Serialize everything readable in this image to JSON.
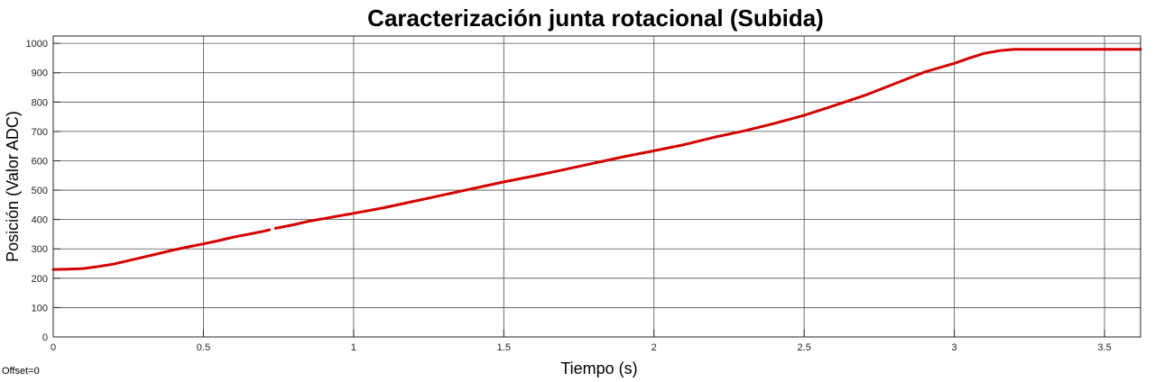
{
  "chart_data": {
    "type": "line",
    "title": "Caracterización junta rotacional (Subida)",
    "xlabel": "Tiempo (s)",
    "ylabel": "Posición (Valor ADC)",
    "xlim": [
      0,
      3.62
    ],
    "ylim": [
      0,
      1025
    ],
    "xticks": [
      0,
      0.5,
      1,
      1.5,
      2,
      2.5,
      3,
      3.5
    ],
    "xtick_labels": [
      "0",
      "0.5",
      "1",
      "1.5",
      "2",
      "2.5",
      "3",
      "3.5"
    ],
    "yticks": [
      0,
      100,
      200,
      300,
      400,
      500,
      600,
      700,
      800,
      900,
      1000
    ],
    "ytick_labels": [
      "0",
      "100",
      "200",
      "300",
      "400",
      "500",
      "600",
      "700",
      "800",
      "900",
      "1000"
    ],
    "grid": true,
    "line_color": "#d40000",
    "series": [
      {
        "segments": [
          {
            "x": [
              0,
              0.05,
              0.1,
              0.15,
              0.2,
              0.25,
              0.3,
              0.35,
              0.4,
              0.45,
              0.5,
              0.55,
              0.6,
              0.65,
              0.7,
              0.72
            ],
            "y": [
              230,
              231,
              233,
              240,
              248,
              260,
              272,
              284,
              296,
              307,
              317,
              328,
              340,
              350,
              360,
              365
            ]
          },
          {
            "x": [
              0.74,
              0.8,
              0.85,
              0.9,
              0.95,
              1,
              1.1,
              1.2,
              1.3,
              1.4,
              1.5,
              1.6,
              1.7,
              1.8,
              1.9,
              2,
              2.1,
              2.2,
              2.3,
              2.4,
              2.5,
              2.6,
              2.7,
              2.8,
              2.9,
              3,
              3.05,
              3.1,
              3.15,
              3.2,
              3.3,
              3.4,
              3.5,
              3.62
            ],
            "y": [
              370,
              382,
              394,
              403,
              412,
              421,
              440,
              462,
              484,
              506,
              528,
              548,
              570,
              592,
              614,
              634,
              655,
              680,
              702,
              727,
              755,
              788,
              822,
              862,
              902,
              932,
              950,
              966,
              975,
              980,
              980,
              980,
              980,
              980
            ]
          }
        ]
      }
    ]
  },
  "footer": {
    "offset": "Offset=0"
  }
}
